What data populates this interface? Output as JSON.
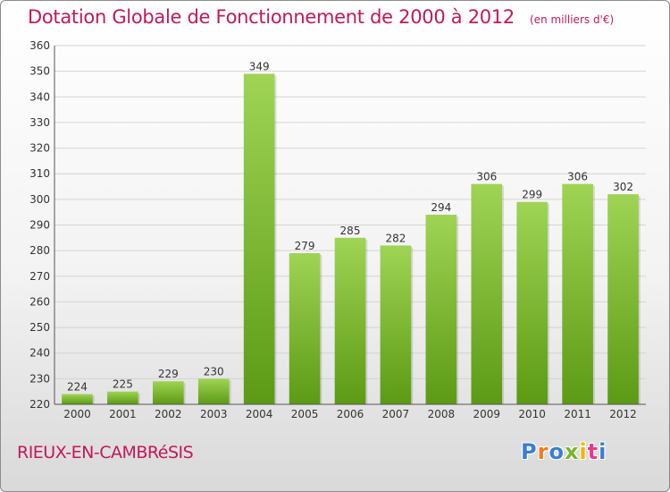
{
  "header": {
    "title": "Dotation Globale de Fonctionnement de 2000 à 2012",
    "subtitle": "(en milliers d'€)"
  },
  "footer": {
    "commune": "RIEUX-EN-CAMBRéSIS",
    "logo_text": "Proxiti",
    "logo_colors": [
      "#3a7fd0",
      "#f47a1f",
      "#3a7fd0",
      "#78b828",
      "#f5b400",
      "#e83a8c",
      "#3a7fd0"
    ]
  },
  "colors": {
    "bar_light": "#9fd454",
    "bar_dark": "#5c9a15",
    "grid": "#d4d4d4",
    "axis": "#555555",
    "label": "#333333"
  },
  "chart_data": {
    "type": "bar",
    "categories": [
      "2000",
      "2001",
      "2002",
      "2003",
      "2004",
      "2005",
      "2006",
      "2007",
      "2008",
      "2009",
      "2010",
      "2011",
      "2012"
    ],
    "values": [
      224,
      225,
      229,
      230,
      349,
      279,
      285,
      282,
      294,
      306,
      299,
      306,
      302
    ],
    "ylim": [
      220,
      360
    ],
    "yticks": [
      220,
      230,
      240,
      250,
      260,
      270,
      280,
      290,
      300,
      310,
      320,
      330,
      340,
      350,
      360
    ],
    "grid": true,
    "value_labels": true
  }
}
